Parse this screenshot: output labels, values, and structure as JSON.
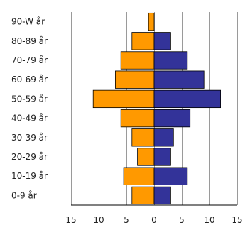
{
  "chart_data": {
    "type": "bar",
    "orientation": "horizontal",
    "layout": "population-pyramid",
    "categories": [
      "90-W år",
      "80-89 år",
      "70-79 år",
      "60-69 år",
      "50-59 år",
      "40-49 år",
      "30-39 år",
      "20-29 år",
      "10-19 år",
      "0-9 år"
    ],
    "series": [
      {
        "color": "#FF9900",
        "side": "left",
        "values": [
          1,
          4,
          6,
          7,
          11,
          6,
          4,
          3,
          5.5,
          4
        ]
      },
      {
        "color": "#333399",
        "side": "right",
        "values": [
          0,
          3,
          6,
          9,
          12,
          6.5,
          3.5,
          3,
          6,
          3
        ]
      }
    ],
    "x_ticks": [
      "15",
      "10",
      "5",
      "0",
      "5",
      "10",
      "15"
    ],
    "xlim": [
      -15,
      15
    ],
    "grid": true,
    "legend": "none"
  }
}
